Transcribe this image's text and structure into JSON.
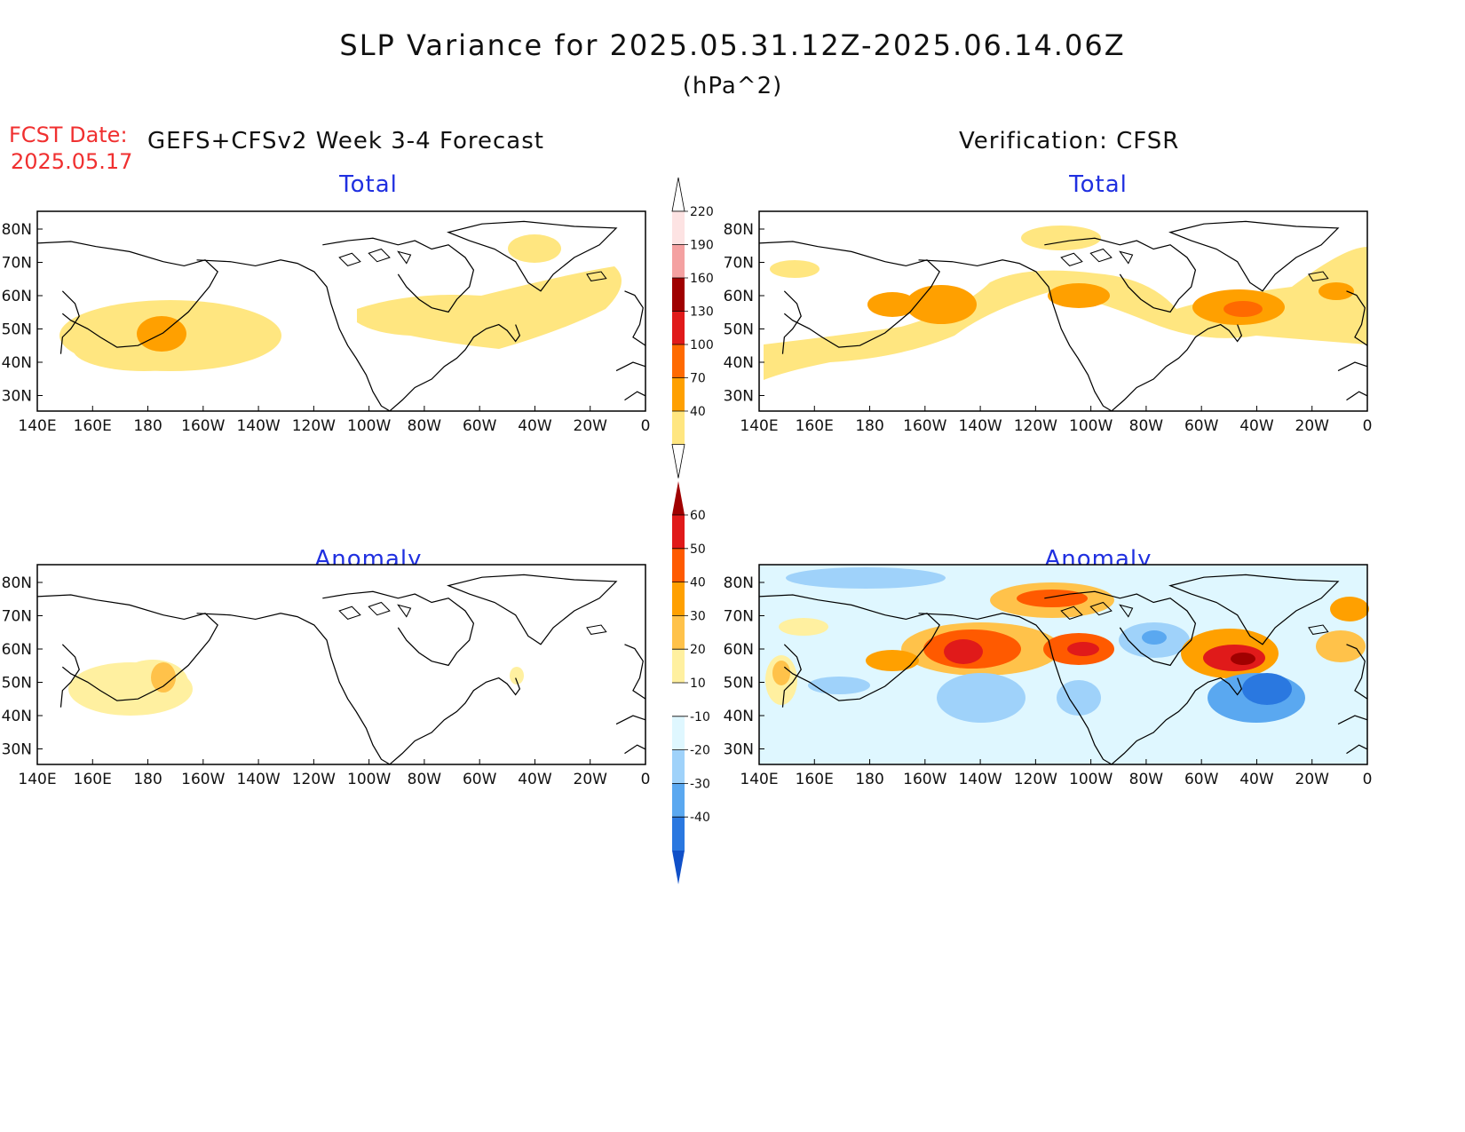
{
  "header": {
    "title": "SLP Variance for 2025.05.31.12Z-2025.06.14.06Z",
    "unit": "(hPa^2)",
    "fcst_label": "FCST Date:",
    "fcst_date": "2025.05.17",
    "model_label": "GEFS+CFSv2 Week 3-4 Forecast",
    "verif_label": "Verification: CFSR"
  },
  "panels": {
    "top_left_title": "Total",
    "top_right_title": "Total",
    "bottom_left_title": "Anomaly",
    "bottom_right_title": "Anomaly"
  },
  "axes": {
    "lon_labels": [
      "140E",
      "160E",
      "180",
      "160W",
      "140W",
      "120W",
      "100W",
      "80W",
      "60W",
      "40W",
      "20W",
      "0"
    ],
    "lat_labels": [
      "80N",
      "70N",
      "60N",
      "50N",
      "40N",
      "30N"
    ]
  },
  "colorbars": {
    "total": {
      "levels": [
        "220",
        "190",
        "160",
        "130",
        "100",
        "70",
        "40"
      ],
      "colors": [
        "#fde3e3",
        "#f4a1a1",
        "#a00000",
        "#e01a1a",
        "#ff6a00",
        "#ffa000",
        "#ffe680"
      ]
    },
    "anomaly": {
      "levels": [
        "60",
        "50",
        "40",
        "30",
        "20",
        "10",
        "-10",
        "-20",
        "-30",
        "-40"
      ],
      "colors": [
        "#a00000",
        "#e01a1a",
        "#ff5a00",
        "#ffa000",
        "#ffc24a",
        "#fff0a0",
        "#ffffff",
        "#dff7ff",
        "#9fd2fa",
        "#5aa8f0",
        "#2a78e0",
        "#1050c8"
      ]
    }
  },
  "chart_data": {
    "type": "heatmap",
    "projection": "lat-lon",
    "lon_range": [
      "140E",
      "0"
    ],
    "lat_range": [
      "25N",
      "85N"
    ],
    "panels": [
      {
        "name": "Total (forecast)",
        "max_shaded_level": "70"
      },
      {
        "name": "Total (verification)",
        "max_shaded_level": "100"
      },
      {
        "name": "Anomaly (forecast)",
        "max_shaded_level": "20"
      },
      {
        "name": "Anomaly (verification)",
        "max_shaded_level": "60",
        "min_shaded_level": "-40"
      }
    ]
  }
}
